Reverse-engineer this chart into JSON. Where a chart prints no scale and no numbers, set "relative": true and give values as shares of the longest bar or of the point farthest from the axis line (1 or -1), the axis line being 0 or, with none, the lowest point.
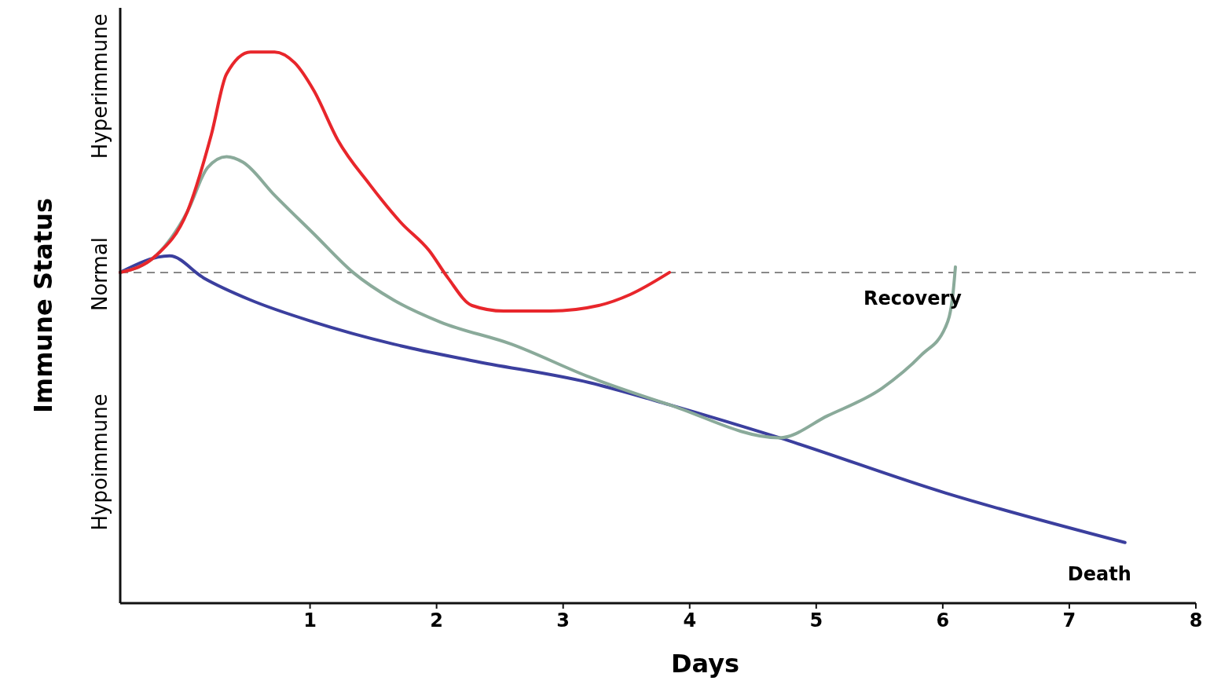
{
  "chart_data": {
    "type": "line",
    "relative": true,
    "xlabel": "Days",
    "ylabel": "Immune Status",
    "xlim": [
      -0.5,
      8
    ],
    "xticks": [
      1,
      2,
      3,
      4,
      5,
      6,
      7,
      8
    ],
    "series": [
      {
        "name": "Death",
        "color": "#3b3f9e",
        "x": [
          -0.5,
          -0.11,
          0.16,
          0.53,
          1.03,
          1.66,
          2.28,
          3.21,
          3.84,
          4.71,
          6.02,
          7.44
        ],
        "values": [
          0.6,
          0.63,
          0.59,
          0.55,
          0.51,
          0.47,
          0.44,
          0.4,
          0.36,
          0.3,
          0.2,
          0.11
        ]
      },
      {
        "name": "Recovery",
        "color": "#8aaa9a",
        "x": [
          -0.5,
          -0.22,
          0.03,
          0.19,
          0.34,
          0.47,
          0.72,
          1.03,
          1.34,
          1.66,
          2.03,
          2.59,
          3.21,
          3.84,
          4.71,
          5.09,
          5.52,
          5.83,
          6.02,
          6.08,
          6.1
        ],
        "values": [
          0.6,
          0.63,
          0.71,
          0.79,
          0.81,
          0.8,
          0.74,
          0.67,
          0.6,
          0.55,
          0.51,
          0.47,
          0.41,
          0.36,
          0.3,
          0.34,
          0.39,
          0.45,
          0.5,
          0.56,
          0.61
        ]
      },
      {
        "color": "#e8262b",
        "x": [
          -0.5,
          -0.22,
          0.03,
          0.22,
          0.34,
          0.53,
          0.72,
          0.88,
          1.03,
          1.22,
          1.47,
          1.72,
          1.94,
          2.09,
          2.28,
          2.53,
          2.9,
          3.28,
          3.53,
          3.84
        ],
        "values": [
          0.6,
          0.63,
          0.71,
          0.85,
          0.96,
          1.0,
          1.0,
          0.98,
          0.93,
          0.84,
          0.76,
          0.69,
          0.64,
          0.59,
          0.54,
          0.53,
          0.53,
          0.54,
          0.56,
          0.6
        ]
      }
    ],
    "ref_lines": [
      {
        "axis": "y",
        "value": 0.6,
        "color": "#888888",
        "line_style": "dashed"
      }
    ],
    "annotations": [
      "Hypoimmune",
      "Normal",
      "Hyperimmune"
    ],
    "legend": false,
    "grid": false,
    "marker": "none",
    "line_style": "solid"
  }
}
